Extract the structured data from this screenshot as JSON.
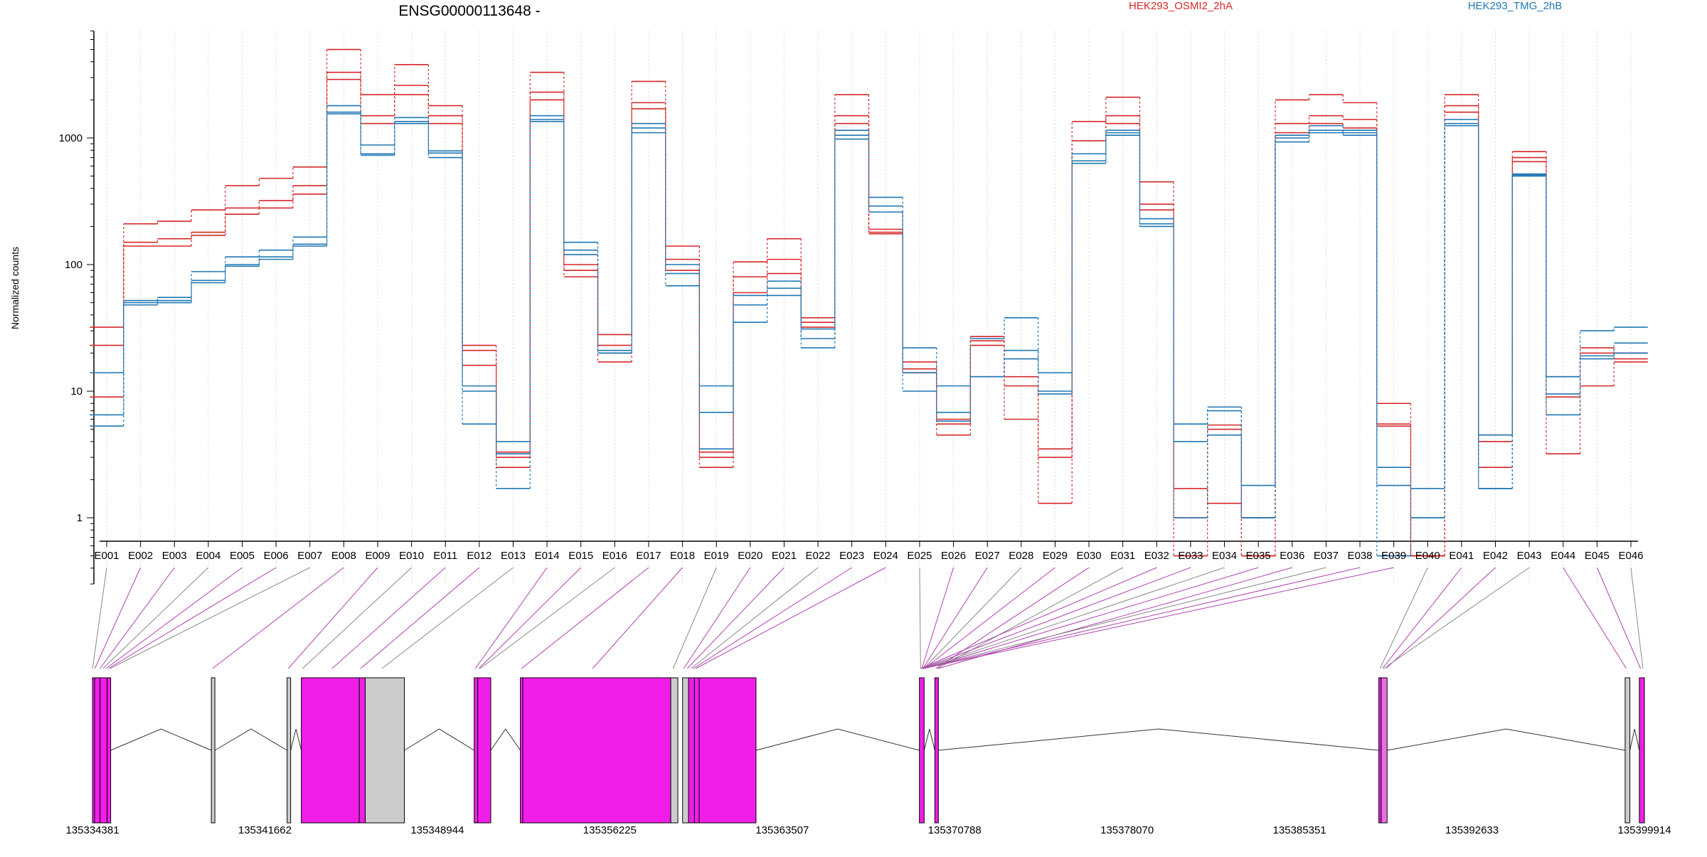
{
  "chart_data": {
    "type": "line",
    "title": "ENSG00000113648 -",
    "ylabel": "Normalized counts",
    "xlabel": "",
    "yscale": "log",
    "ylim": [
      0.3,
      7000
    ],
    "y_ticks": [
      1,
      10,
      100,
      1000
    ],
    "y_tick_labels": [
      "1",
      "10",
      "100",
      "1000"
    ],
    "grid": "vertical dotted lines at exon positions",
    "legend": "top",
    "categories": [
      "E001",
      "E002",
      "E003",
      "E004",
      "E005",
      "E006",
      "E007",
      "E008",
      "E009",
      "E010",
      "E011",
      "E012",
      "E013",
      "E014",
      "E015",
      "E016",
      "E017",
      "E018",
      "E019",
      "E020",
      "E021",
      "E022",
      "E023",
      "E024",
      "E025",
      "E026",
      "E027",
      "E028",
      "E029",
      "E030",
      "E031",
      "E032",
      "E033",
      "E034",
      "E035",
      "E036",
      "E037",
      "E038",
      "E039",
      "E040",
      "E041",
      "E042",
      "E043",
      "E044",
      "E045",
      "E046"
    ],
    "series": [
      {
        "name": "HEK293_OSMI2_2hA",
        "color": "#d62728",
        "values": [
          32,
          210,
          220,
          270,
          420,
          480,
          590,
          5000,
          2200,
          3800,
          1800,
          23,
          3.3,
          3300,
          80,
          28,
          2800,
          140,
          3.3,
          105,
          160,
          38,
          2200,
          190,
          17,
          6.0,
          27,
          13,
          3.5,
          1350,
          2100,
          450,
          0.5,
          5.4,
          0.5,
          2000,
          2200,
          1900,
          8,
          0.5,
          2200,
          4.5,
          780,
          13,
          22,
          20
        ]
      },
      {
        "name": "HEK293_OSMI2_2hA",
        "color": "#d62728",
        "values": [
          23,
          150,
          160,
          180,
          280,
          320,
          420,
          3300,
          1500,
          2600,
          1500,
          21,
          3.0,
          2300,
          90,
          23,
          1900,
          110,
          3.0,
          80,
          110,
          35,
          1500,
          180,
          15,
          5.5,
          25,
          11,
          3.0,
          950,
          1500,
          300,
          1.0,
          5.0,
          0.5,
          1300,
          1500,
          1400,
          5.5,
          0.5,
          1800,
          4.0,
          700,
          9,
          20,
          18
        ]
      },
      {
        "name": "HEK293_OSMI2_2hA",
        "color": "#d62728",
        "values": [
          9,
          140,
          140,
          170,
          250,
          280,
          360,
          2900,
          1300,
          2200,
          1300,
          16,
          2.5,
          2000,
          100,
          17,
          1700,
          90,
          2.5,
          60,
          85,
          32,
          1300,
          175,
          14,
          4.5,
          23,
          6.0,
          1.3,
          750,
          1300,
          270,
          1.7,
          1.3,
          1.0,
          1100,
          1300,
          1200,
          5.3,
          0.5,
          1600,
          2.5,
          650,
          3.2,
          11,
          17
        ]
      },
      {
        "name": "HEK293_TMG_2hB",
        "color": "#1f77b4",
        "values": [
          14,
          52,
          55,
          88,
          115,
          130,
          165,
          1800,
          880,
          1450,
          790,
          11,
          4.0,
          1500,
          150,
          21,
          1300,
          100,
          11,
          57,
          74,
          31,
          1150,
          340,
          22,
          11,
          26,
          38,
          14,
          750,
          1150,
          230,
          5.5,
          7.5,
          1.8,
          1050,
          1250,
          1150,
          2.5,
          1.7,
          1400,
          4.5,
          520,
          13,
          30,
          32
        ]
      },
      {
        "name": "HEK293_TMG_2hB",
        "color": "#1f77b4",
        "values": [
          6.5,
          50,
          52,
          75,
          100,
          115,
          145,
          1600,
          750,
          1350,
          760,
          10,
          3.2,
          1400,
          130,
          20,
          1200,
          85,
          6.8,
          48,
          65,
          26,
          1050,
          290,
          14,
          6.8,
          13,
          21,
          10,
          660,
          1100,
          210,
          4.0,
          7.0,
          1.0,
          1000,
          1150,
          1100,
          1.8,
          1.0,
          1300,
          1.7,
          510,
          9.5,
          19,
          24
        ]
      },
      {
        "name": "HEK293_TMG_2hB",
        "color": "#1f77b4",
        "values": [
          5.3,
          48,
          50,
          72,
          97,
          110,
          140,
          1550,
          730,
          1300,
          700,
          5.5,
          1.7,
          1350,
          120,
          20,
          1100,
          68,
          3.5,
          35,
          57,
          22,
          980,
          260,
          10,
          5.8,
          13,
          18,
          9.5,
          630,
          1050,
          200,
          1.0,
          4.5,
          1.0,
          930,
          1100,
          1050,
          0.5,
          1.0,
          1250,
          1.7,
          500,
          6.5,
          18,
          20
        ]
      }
    ],
    "gene_model": {
      "coordinate_labels": [
        "135334381",
        "135341662",
        "135348944",
        "135356225",
        "135363507",
        "135370788",
        "135378070",
        "135385351",
        "135392633",
        "135399914"
      ],
      "coord_range": [
        135334381,
        135399914
      ],
      "exons": [
        {
          "start": 135334381,
          "end": 135334470,
          "fill": "#f01ee8"
        },
        {
          "start": 135334470,
          "end": 135334700,
          "fill": "#f01ee8"
        },
        {
          "start": 135334700,
          "end": 135335000,
          "fill": "#f01ee8"
        },
        {
          "start": 135335000,
          "end": 135335150,
          "fill": "#f01ee8"
        },
        {
          "start": 135339400,
          "end": 135339550,
          "fill": "#cccccc"
        },
        {
          "start": 135342600,
          "end": 135342750,
          "fill": "#cccccc"
        },
        {
          "start": 135343200,
          "end": 135345650,
          "fill": "#f01ee8"
        },
        {
          "start": 135345650,
          "end": 135345900,
          "fill": "#f01ee8"
        },
        {
          "start": 135345900,
          "end": 135347550,
          "fill": "#cccccc"
        },
        {
          "start": 135350500,
          "end": 135350650,
          "fill": "#f01ee8"
        },
        {
          "start": 135350650,
          "end": 135351200,
          "fill": "#f01ee8"
        },
        {
          "start": 135352450,
          "end": 135352550,
          "fill": "#f01ee8"
        },
        {
          "start": 135352550,
          "end": 135358800,
          "fill": "#f01ee8"
        },
        {
          "start": 135358800,
          "end": 135359100,
          "fill": "#cccccc"
        },
        {
          "start": 135359300,
          "end": 135359550,
          "fill": "#cccccc"
        },
        {
          "start": 135359550,
          "end": 135359800,
          "fill": "#f01ee8"
        },
        {
          "start": 135359800,
          "end": 135360000,
          "fill": "#f01ee8"
        },
        {
          "start": 135360000,
          "end": 135362400,
          "fill": "#f01ee8"
        },
        {
          "start": 135369300,
          "end": 135369500,
          "fill": "#f01ee8"
        },
        {
          "start": 135369950,
          "end": 135370100,
          "fill": "#f01ee8"
        },
        {
          "start": 135388700,
          "end": 135388800,
          "fill": "#f01ee8"
        },
        {
          "start": 135388800,
          "end": 135389050,
          "fill": "#e870e2"
        },
        {
          "start": 135399100,
          "end": 135399300,
          "fill": "#cccccc"
        },
        {
          "start": 135399700,
          "end": 135399914,
          "fill": "#f01ee8"
        }
      ],
      "introns": [
        [
          135335150,
          135339400
        ],
        [
          135339550,
          135342600
        ],
        [
          135342750,
          135343200
        ],
        [
          135347550,
          135350500
        ],
        [
          135351200,
          135352450
        ],
        [
          135362400,
          135369300
        ],
        [
          135369500,
          135369950
        ],
        [
          135370100,
          135388700
        ],
        [
          135389050,
          135399100
        ],
        [
          135399300,
          135399700
        ]
      ],
      "connector_targets": [
        135334385,
        135334480,
        135334700,
        135334820,
        135334950,
        135335050,
        135335120,
        135339450,
        135342650,
        135343250,
        135344500,
        135345700,
        135346600,
        135350550,
        135350700,
        135350750,
        135352500,
        135355500,
        135358900,
        135359350,
        135359500,
        135359650,
        135359750,
        135359850,
        135369350,
        135369400,
        135369450,
        135369480,
        135369500,
        135369990,
        135370050,
        135369350,
        135369400,
        135369450,
        135369500,
        135370080,
        135369380,
        135369420,
        135369460,
        135388750,
        135388850,
        135389000,
        135388900,
        135399150,
        135399750,
        135399850
      ]
    }
  }
}
